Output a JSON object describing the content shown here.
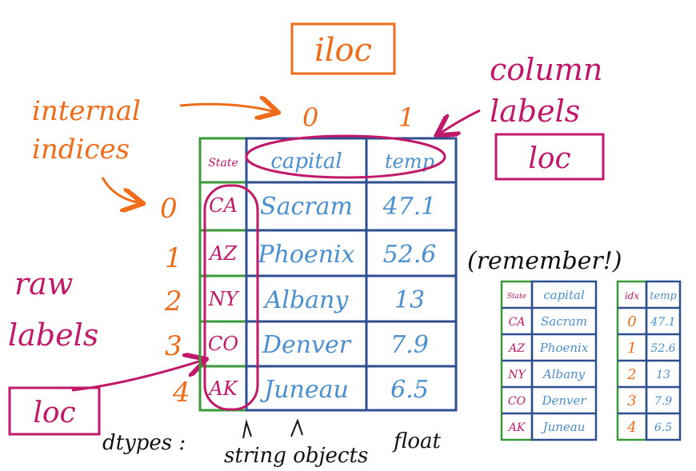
{
  "title": "iloc",
  "labels": {
    "internal_line1": "internal",
    "internal_line2": "indices",
    "column_line1": "column",
    "column_line2": "labels",
    "column_loc": "loc",
    "row_line1": "raw",
    "row_line2": "labels",
    "row_loc": "loc",
    "remember": "(remember!)",
    "dtypes": "dtypes :",
    "string_objects": "string objects",
    "float": "float"
  },
  "column_indices": [
    "0",
    "1"
  ],
  "row_indices": [
    "0",
    "1",
    "2",
    "3",
    "4"
  ],
  "table": {
    "index_header": "State",
    "headers": [
      "capital",
      "temp"
    ],
    "rows": [
      {
        "state": "CA",
        "capital": "Sacram",
        "temp": "47.1"
      },
      {
        "state": "AZ",
        "capital": "Phoenix",
        "temp": "52.6"
      },
      {
        "state": "NY",
        "capital": "Albany",
        "temp": "13"
      },
      {
        "state": "CO",
        "capital": "Denver",
        "temp": "7.9"
      },
      {
        "state": "AK",
        "capital": "Juneau",
        "temp": "6.5"
      }
    ]
  },
  "mini_tables": {
    "left_index_header": "State",
    "left_header": "capital",
    "right_index_header": "idx",
    "right_header": "temp",
    "left_rows": [
      {
        "state": "CA",
        "capital": "Sacram"
      },
      {
        "state": "AZ",
        "capital": "Phoenix"
      },
      {
        "state": "NY",
        "capital": "Albany"
      },
      {
        "state": "CO",
        "capital": "Denver"
      },
      {
        "state": "AK",
        "capital": "Juneau"
      }
    ],
    "right_rows": [
      {
        "idx": "0",
        "temp": "47.1"
      },
      {
        "idx": "1",
        "temp": "52.6"
      },
      {
        "idx": "2",
        "temp": "13"
      },
      {
        "idx": "3",
        "temp": "7.9"
      },
      {
        "idx": "4",
        "temp": "6.5"
      }
    ]
  },
  "colors": {
    "orange": "#ef6c1a",
    "magenta": "#c2186a",
    "blue": "#2e4f8f",
    "light_blue": "#4a8fd0",
    "green": "#3a9a3a"
  }
}
